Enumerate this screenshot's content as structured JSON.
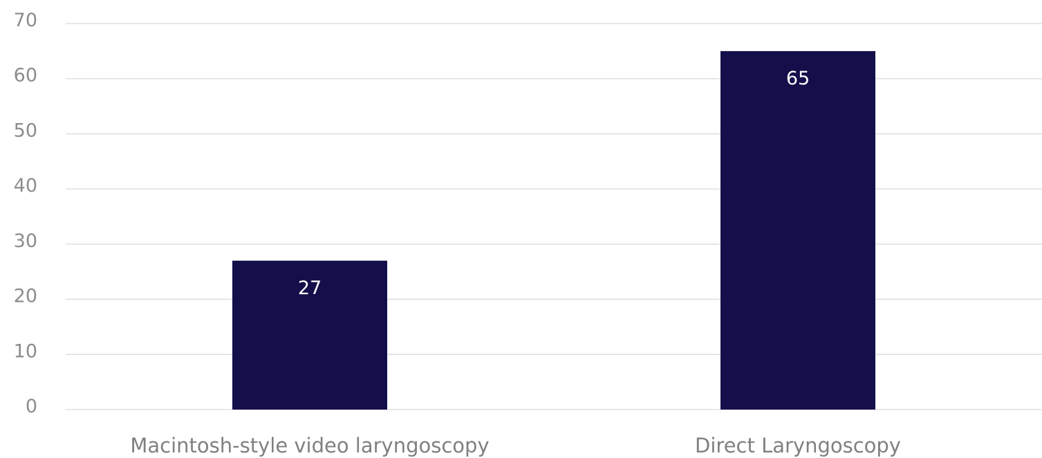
{
  "chart_data": {
    "type": "bar",
    "title": "",
    "xlabel": "",
    "ylabel": "",
    "categories": [
      "Macintosh-style video laryngoscopy",
      "Direct Laryngoscopy"
    ],
    "values": [
      27,
      65
    ],
    "data_labels": [
      "27",
      "65"
    ],
    "ylim": [
      0,
      70
    ],
    "yticks": [
      0,
      10,
      20,
      30,
      40,
      50,
      60,
      70
    ],
    "ytick_labels": [
      "0",
      "10",
      "20",
      "30",
      "40",
      "50",
      "60",
      "70"
    ],
    "grid": true,
    "legend": "none",
    "bar_color": "#140f4a"
  }
}
